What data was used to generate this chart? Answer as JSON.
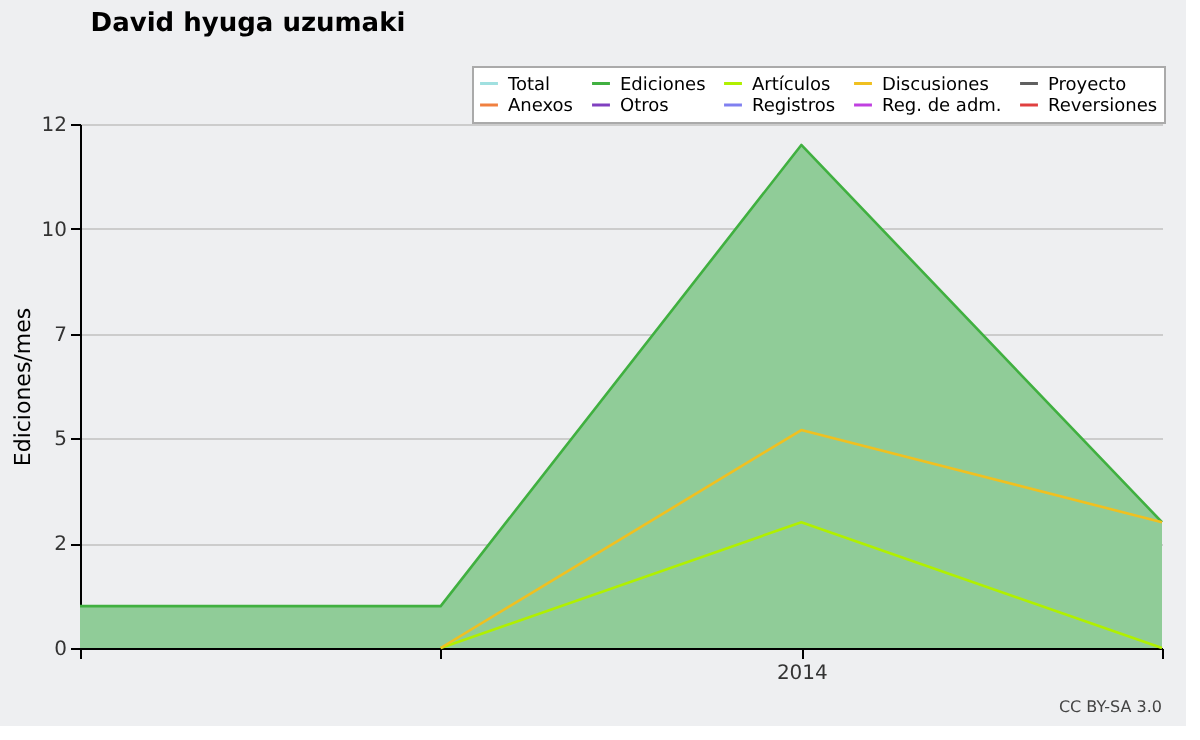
{
  "chart_data": {
    "type": "line",
    "title": "David hyuga uzumaki",
    "ylabel": "Ediciones/mes",
    "categories": [
      null,
      null,
      "2014",
      null
    ],
    "series": [
      {
        "name": "Total",
        "color": "#a0e0e0",
        "values": [
          null,
          null,
          null,
          null
        ]
      },
      {
        "name": "Ediciones",
        "color": "#40b040",
        "type": "area",
        "values": [
          1,
          1,
          12,
          3
        ]
      },
      {
        "name": "Artículos",
        "color": "#b0f000",
        "values": [
          null,
          0,
          3,
          0
        ]
      },
      {
        "name": "Discusiones",
        "color": "#f0c020",
        "values": [
          null,
          0,
          5.2,
          3
        ]
      },
      {
        "name": "Proyecto",
        "color": "#606060",
        "values": [
          null,
          null,
          null,
          null
        ]
      },
      {
        "name": "Anexos",
        "color": "#f08040",
        "values": [
          null,
          null,
          null,
          null
        ]
      },
      {
        "name": "Otros",
        "color": "#8040c0",
        "values": [
          null,
          null,
          null,
          null
        ]
      },
      {
        "name": "Registros",
        "color": "#8080f0",
        "values": [
          null,
          null,
          null,
          null
        ]
      },
      {
        "name": "Reg. de adm.",
        "color": "#c040e0",
        "values": [
          null,
          null,
          null,
          null
        ]
      },
      {
        "name": "Reversiones",
        "color": "#e04040",
        "values": [
          null,
          null,
          null,
          null
        ]
      }
    ],
    "ylim": [
      0,
      12.5
    ],
    "yticks": [
      0,
      {
        "value": 2.5,
        "label": "2"
      },
      5,
      {
        "value": 7.5,
        "label": "7"
      },
      10,
      {
        "value": 12.5,
        "label": "12"
      }
    ],
    "grid": "y",
    "legend": "top right",
    "marker": "none",
    "line_style": "solid",
    "annotations": [
      "CC BY-SA 3.0"
    ]
  }
}
